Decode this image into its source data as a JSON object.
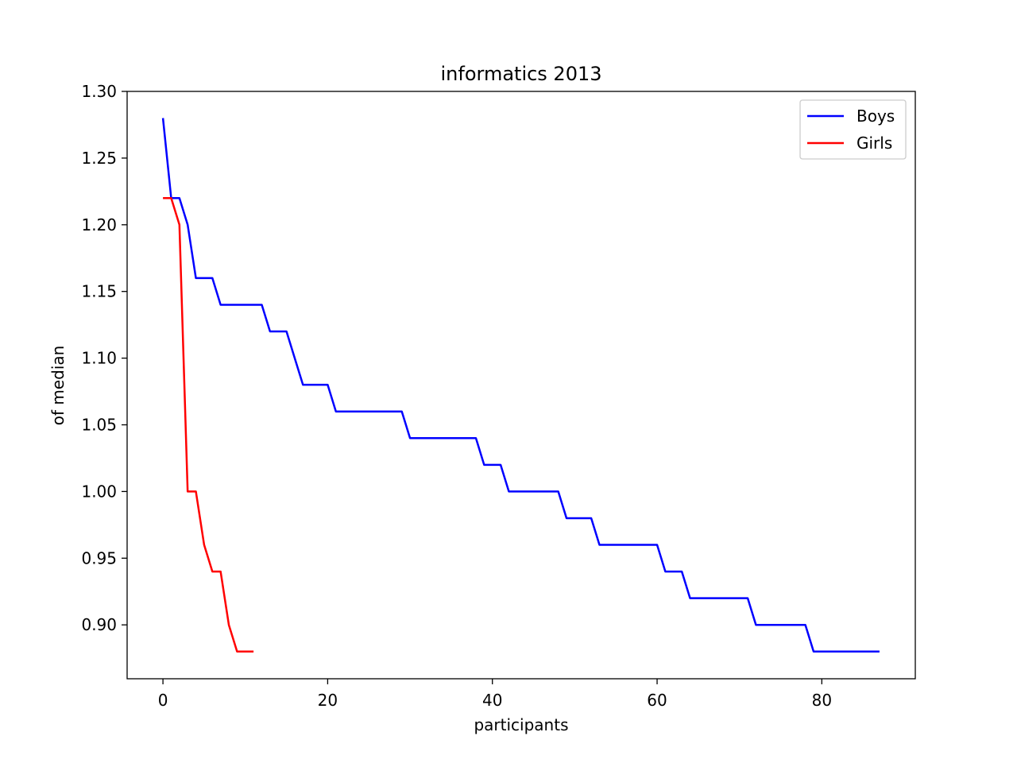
{
  "chart_data": {
    "type": "line",
    "title": "informatics 2013",
    "xlabel": "participants",
    "ylabel": "of median",
    "xlim": [
      -4.35,
      91.35
    ],
    "ylim": [
      0.8596,
      1.3
    ],
    "xticks": [
      0,
      20,
      40,
      60,
      80
    ],
    "xtick_labels": [
      "0",
      "20",
      "40",
      "60",
      "80"
    ],
    "yticks": [
      0.9,
      0.95,
      1.0,
      1.05,
      1.1,
      1.15,
      1.2,
      1.25,
      1.3
    ],
    "ytick_labels": [
      "0.90",
      "0.95",
      "1.00",
      "1.05",
      "1.10",
      "1.15",
      "1.20",
      "1.25",
      "1.30"
    ],
    "grid": false,
    "legend_position": "top-right",
    "series": [
      {
        "name": "Boys",
        "color": "#0000ff",
        "x": [
          0,
          1,
          2,
          3,
          4,
          5,
          6,
          7,
          8,
          9,
          10,
          11,
          12,
          13,
          14,
          15,
          16,
          17,
          18,
          19,
          20,
          21,
          22,
          23,
          24,
          25,
          26,
          27,
          28,
          29,
          30,
          31,
          32,
          33,
          34,
          35,
          36,
          37,
          38,
          39,
          40,
          41,
          42,
          43,
          44,
          45,
          46,
          47,
          48,
          49,
          50,
          51,
          52,
          53,
          54,
          55,
          56,
          57,
          58,
          59,
          60,
          61,
          62,
          63,
          64,
          65,
          66,
          67,
          68,
          69,
          70,
          71,
          72,
          73,
          74,
          75,
          76,
          77,
          78,
          79,
          80,
          81,
          82,
          83,
          84,
          85,
          86,
          87
        ],
        "y": [
          1.28,
          1.22,
          1.22,
          1.2,
          1.16,
          1.16,
          1.16,
          1.14,
          1.14,
          1.14,
          1.14,
          1.14,
          1.14,
          1.12,
          1.12,
          1.12,
          1.1,
          1.08,
          1.08,
          1.08,
          1.08,
          1.06,
          1.06,
          1.06,
          1.06,
          1.06,
          1.06,
          1.06,
          1.06,
          1.06,
          1.04,
          1.04,
          1.04,
          1.04,
          1.04,
          1.04,
          1.04,
          1.04,
          1.04,
          1.02,
          1.02,
          1.02,
          1.0,
          1.0,
          1.0,
          1.0,
          1.0,
          1.0,
          1.0,
          0.98,
          0.98,
          0.98,
          0.98,
          0.96,
          0.96,
          0.96,
          0.96,
          0.96,
          0.96,
          0.96,
          0.96,
          0.94,
          0.94,
          0.94,
          0.92,
          0.92,
          0.92,
          0.92,
          0.92,
          0.92,
          0.92,
          0.92,
          0.9,
          0.9,
          0.9,
          0.9,
          0.9,
          0.9,
          0.9,
          0.88,
          0.88,
          0.88,
          0.88,
          0.88,
          0.88,
          0.88,
          0.88,
          0.88
        ]
      },
      {
        "name": "Girls",
        "color": "#ff0000",
        "x": [
          0,
          1,
          2,
          3,
          4,
          5,
          6,
          7,
          8,
          9,
          10,
          11
        ],
        "y": [
          1.22,
          1.22,
          1.2,
          1.0,
          1.0,
          0.96,
          0.94,
          0.94,
          0.9,
          0.88,
          0.88,
          0.88
        ]
      }
    ]
  }
}
